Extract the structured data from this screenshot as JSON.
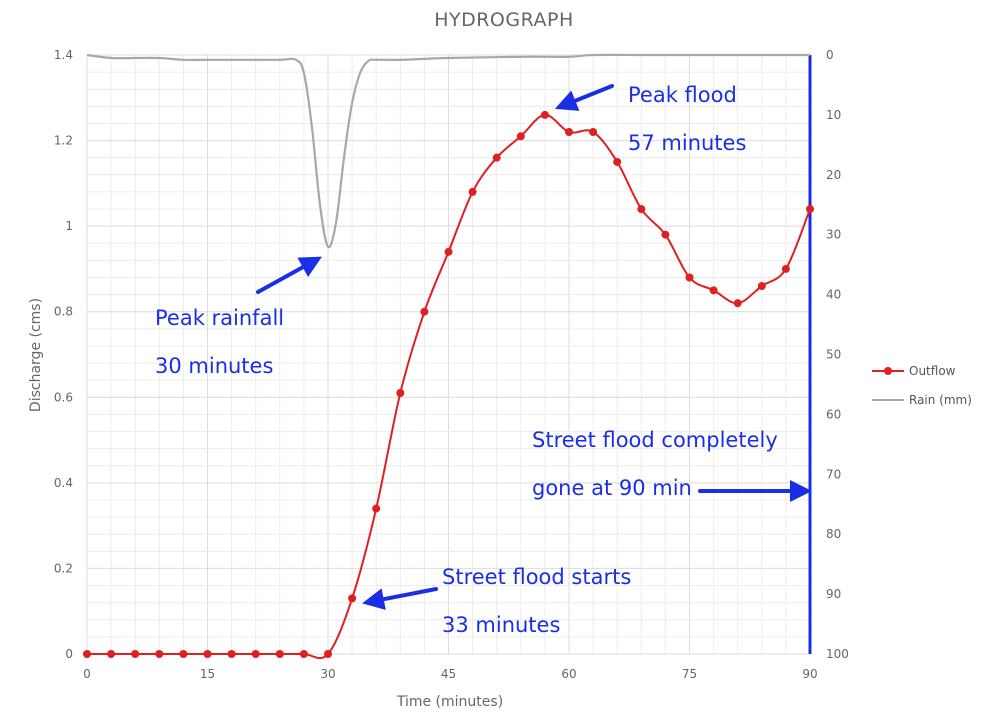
{
  "chart_data": {
    "type": "line",
    "title": "HYDROGRAPH",
    "xlabel": "Time (minutes)",
    "ylabel": "Discharge (cms)",
    "xlim": [
      0,
      90
    ],
    "ylim": [
      0,
      1.4
    ],
    "y2lim": [
      0,
      100
    ],
    "y2_inverted": true,
    "x_ticks": [
      "0",
      "15",
      "30",
      "45",
      "60",
      "75",
      "90"
    ],
    "y_ticks": [
      "0",
      "0.2",
      "0.4",
      "0.6",
      "0.8",
      "1",
      "1.2",
      "1.4"
    ],
    "y2_ticks": [
      "0",
      "10",
      "20",
      "30",
      "40",
      "50",
      "60",
      "70",
      "80",
      "90",
      "100"
    ],
    "grid": true,
    "legend_position": "right",
    "series": [
      {
        "name": "Outflow",
        "axis": "left",
        "color": "#e02020",
        "markers": true,
        "x": [
          0,
          3,
          6,
          9,
          12,
          15,
          18,
          21,
          24,
          27,
          30,
          33,
          36,
          39,
          42,
          45,
          48,
          51,
          54,
          57,
          60,
          63,
          66,
          69,
          72,
          75,
          78,
          81,
          84,
          87,
          90
        ],
        "y": [
          0,
          0,
          0,
          0,
          0,
          0,
          0,
          0,
          0,
          0,
          0,
          0.13,
          0.34,
          0.61,
          0.8,
          0.94,
          1.08,
          1.16,
          1.21,
          1.26,
          1.22,
          1.22,
          1.15,
          1.04,
          0.98,
          0.88,
          0.85,
          0.82,
          0.86,
          0.9,
          1.04
        ]
      },
      {
        "name": "Rain (mm)",
        "axis": "right",
        "color": "#a8a8a8",
        "markers": false,
        "x": [
          0,
          3,
          6,
          9,
          12,
          15,
          18,
          21,
          24,
          26,
          27,
          28,
          29,
          30,
          31,
          32,
          33,
          34,
          35,
          36,
          39,
          45,
          54,
          60,
          63,
          70,
          80,
          90
        ],
        "y": [
          0,
          0.5,
          0.5,
          0.5,
          0.8,
          0.8,
          0.8,
          0.8,
          0.8,
          0.8,
          3,
          12,
          25,
          32,
          28,
          17,
          8,
          3,
          1,
          0.8,
          0.8,
          0.5,
          0.3,
          0.3,
          0,
          0,
          0,
          0
        ]
      }
    ],
    "annotations": [
      {
        "lines": [
          "Peak flood",
          "57 minutes"
        ]
      },
      {
        "lines": [
          "Peak rainfall",
          "30 minutes"
        ]
      },
      {
        "lines": [
          "Street flood completely",
          "gone at 90 min"
        ]
      },
      {
        "lines": [
          "Street flood starts",
          "33 minutes"
        ]
      }
    ],
    "annotation_color": "#1a2ee6",
    "secondary_axis_color": "#1a2ee6"
  }
}
